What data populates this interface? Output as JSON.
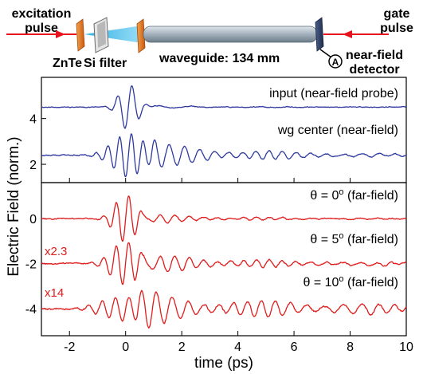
{
  "schematic": {
    "excitation_label_line1": "excitation",
    "excitation_label_line2": "pulse",
    "gate_label_line1": "gate",
    "gate_label_line2": "pulse",
    "crystal_label": "ZnTe",
    "filter_label": "Si filter",
    "waveguide_label": "waveguide: 134 mm",
    "detector_symbol": "A",
    "detector_label_line1": "near-field",
    "detector_label_line2": "detector",
    "colors": {
      "beam": "#e8121e",
      "crystal": "#e87a2a",
      "terahertz_beam": "#29b6e8",
      "waveguide": "#8a9aa8",
      "detector": "#2c3e64"
    }
  },
  "chart_data": {
    "type": "line",
    "xlabel": "time (ps)",
    "ylabel": "Electric Field (norm.)",
    "xlim": [
      -3,
      10
    ],
    "xticks": [
      -2,
      0,
      2,
      4,
      6,
      8,
      10
    ],
    "top_panel": {
      "ylim": [
        1.2,
        5.8
      ],
      "yticks": [
        2,
        4
      ],
      "series": [
        {
          "name": "input (near-field probe)",
          "color": "#2f3a9f",
          "offset": 4.5,
          "wavelet": {
            "center": 0.1,
            "amplitude": 1.0,
            "width": 0.32,
            "period": 0.52
          },
          "ringing": {
            "start": 0.8,
            "amplitude": 0.08,
            "period": 1.2,
            "decay": 2.0
          },
          "noise": 0.03
        },
        {
          "name": "wg center (near-field)",
          "color": "#2f3a9f",
          "offset": 2.4,
          "wavelet": {
            "center": 0.1,
            "amplitude": 0.95,
            "width": 0.55,
            "period": 0.42
          },
          "ringing": {
            "start": 0.9,
            "amplitude": 0.55,
            "period": 0.52,
            "decay": 4.0
          },
          "noise": 0.04
        }
      ]
    },
    "bottom_panel": {
      "ylim": [
        -5.2,
        1.6
      ],
      "yticks": [
        -4,
        -2,
        0
      ],
      "series": [
        {
          "name_prefix": "θ = 0",
          "name_suffix": "(far-field)",
          "scale_label": "",
          "color": "#e01b1b",
          "offset": 0.0,
          "wavelet": {
            "center": 0.0,
            "amplitude": 1.05,
            "width": 0.38,
            "period": 0.45
          },
          "ringing": {
            "start": 0.6,
            "amplitude": 0.22,
            "period": 0.5,
            "decay": 3.5
          },
          "noise": 0.04
        },
        {
          "name_prefix": "θ = 5",
          "name_suffix": "(far-field)",
          "scale_label": "x2.3",
          "color": "#e01b1b",
          "offset": -2.0,
          "wavelet": {
            "center": 0.0,
            "amplitude": 0.95,
            "width": 0.5,
            "period": 0.45
          },
          "ringing": {
            "start": 0.6,
            "amplitude": 0.45,
            "period": 0.5,
            "decay": 4.5
          },
          "noise": 0.05
        },
        {
          "name_prefix": "θ = 10",
          "name_suffix": "(far-field)",
          "scale_label": "x14",
          "color": "#e01b1b",
          "offset": -4.0,
          "wavelet": {
            "center": 0.0,
            "amplitude": 0.55,
            "width": 0.8,
            "period": 0.48
          },
          "ringing": {
            "start": 0.4,
            "amplitude": 0.6,
            "period": 0.55,
            "decay": 9.0
          },
          "noise": 0.06
        }
      ]
    }
  }
}
